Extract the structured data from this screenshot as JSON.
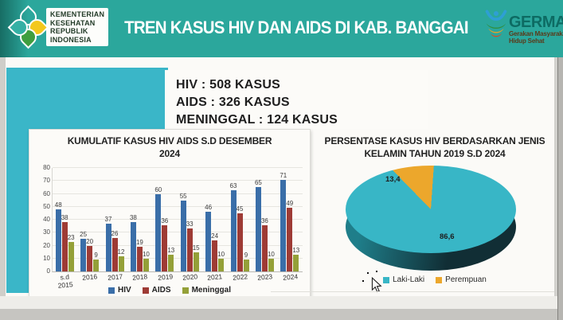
{
  "header": {
    "title": "TREN KASUS HIV DAN AIDS DI KAB. BANGGAI",
    "kemenkes_logo_lines": [
      "KEMENTERIAN",
      "KESEHATAN",
      "REPUBLIK",
      "INDONESIA"
    ],
    "germas": {
      "name": "GERMAS",
      "subtitle_line1": "Gerakan Masyarakat",
      "subtitle_line2": "Hidup Sehat"
    },
    "colors": {
      "band_teal": "#2ba79c"
    }
  },
  "stats": {
    "lines": [
      "HIV : 508 KASUS",
      "AIDS : 326 KASUS",
      "MENINGGAL : 124 KASUS"
    ]
  },
  "decor": {
    "cyan_rect_color": "#3ab6c8"
  },
  "icons": {
    "kemenkes_flower": "four-petal-health-flower",
    "germas_figure": "person-with-leaves",
    "cursor": "arrow-pointer"
  },
  "chart_data": [
    {
      "type": "bar",
      "title_line1": "KUMULATIF KASUS HIV AIDS S.D DESEMBER",
      "title_line2": "2024",
      "categories": [
        "s.d 2015",
        "2016",
        "2017",
        "2018",
        "2019",
        "2020",
        "2021",
        "2022",
        "2023",
        "2024"
      ],
      "series": [
        {
          "name": "HIV",
          "color": "#3a6ea8",
          "values": [
            48,
            25,
            37,
            38,
            60,
            55,
            46,
            63,
            65,
            71
          ]
        },
        {
          "name": "AIDS",
          "color": "#9e3b35",
          "values": [
            38,
            20,
            26,
            19,
            36,
            33,
            24,
            45,
            36,
            49
          ]
        },
        {
          "name": "Meninggal",
          "color": "#94a038",
          "values": [
            23,
            9,
            12,
            10,
            13,
            15,
            10,
            9,
            10,
            13
          ]
        }
      ],
      "ylim": [
        0,
        80
      ],
      "ytick_step": 10,
      "grid": true,
      "legend_position": "bottom"
    },
    {
      "type": "pie",
      "style": "3d",
      "title_line1": "PERSENTASE KASUS HIV BERDASARKAN JENIS",
      "title_line2": "KELAMIN TAHUN 2019 S.D 2024",
      "slices": [
        {
          "label": "Laki-Laki",
          "value": 86.6,
          "display": "86,6",
          "color": "#38b6c6"
        },
        {
          "label": "Perempuan",
          "value": 13.4,
          "display": "13,4",
          "color": "#eca72c"
        }
      ],
      "legend_position": "bottom"
    }
  ]
}
